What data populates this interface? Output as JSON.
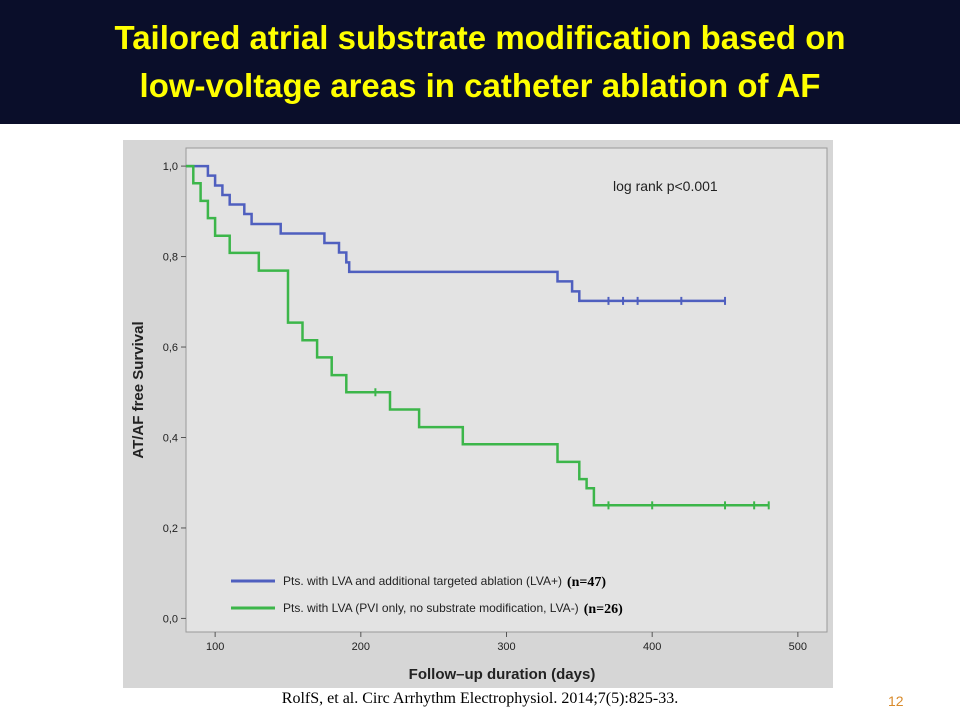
{
  "slide": {
    "title_lines": [
      "Tailored atrial substrate modification based on",
      "low-voltage areas in catheter ablation of AF"
    ],
    "citation": "RolfS, et al. Circ Arrhythm Electrophysiol. 2014;7(5):825-33.",
    "page_number": "12"
  },
  "chart_data": {
    "type": "line",
    "subtype": "kaplan-meier step",
    "xlabel": "Follow–up duration (days)",
    "ylabel": "AT/AF free Survival",
    "xlim": [
      80,
      520
    ],
    "ylim": [
      -0.03,
      1.04
    ],
    "x_ticks": [
      100,
      200,
      300,
      400,
      500
    ],
    "y_ticks": [
      0.0,
      0.2,
      0.4,
      0.6,
      0.8,
      1.0
    ],
    "y_tick_labels": [
      "0,0",
      "0,2",
      "0,4",
      "0,6",
      "0,8",
      "1,0"
    ],
    "annotation": "log rank p<0.001",
    "legend_placement": "bottom-left",
    "grid": false,
    "series": [
      {
        "name": "Pts. with LVA and additional targeted ablation (LVA+)",
        "n_label": "(n=47)",
        "color": "#4f5fbf",
        "steps": [
          [
            80,
            1.0
          ],
          [
            90,
            1.0
          ],
          [
            95,
            0.979
          ],
          [
            100,
            0.957
          ],
          [
            105,
            0.936
          ],
          [
            110,
            0.915
          ],
          [
            120,
            0.894
          ],
          [
            125,
            0.872
          ],
          [
            145,
            0.851
          ],
          [
            175,
            0.83
          ],
          [
            185,
            0.809
          ],
          [
            190,
            0.787
          ],
          [
            192,
            0.766
          ],
          [
            335,
            0.745
          ],
          [
            345,
            0.723
          ],
          [
            350,
            0.702
          ],
          [
            450,
            0.702
          ]
        ],
        "censored": [
          [
            370,
            0.702
          ],
          [
            380,
            0.702
          ],
          [
            390,
            0.702
          ],
          [
            420,
            0.702
          ],
          [
            450,
            0.702
          ]
        ]
      },
      {
        "name": "Pts. with LVA (PVI only, no substrate modification, LVA-)",
        "n_label": "(n=26)",
        "color": "#3cb64a",
        "steps": [
          [
            80,
            1.0
          ],
          [
            85,
            0.962
          ],
          [
            90,
            0.923
          ],
          [
            95,
            0.885
          ],
          [
            100,
            0.846
          ],
          [
            110,
            0.808
          ],
          [
            130,
            0.769
          ],
          [
            150,
            0.654
          ],
          [
            160,
            0.615
          ],
          [
            170,
            0.577
          ],
          [
            180,
            0.538
          ],
          [
            190,
            0.5
          ],
          [
            220,
            0.462
          ],
          [
            240,
            0.423
          ],
          [
            270,
            0.385
          ],
          [
            335,
            0.346
          ],
          [
            350,
            0.308
          ],
          [
            355,
            0.288
          ],
          [
            360,
            0.25
          ],
          [
            480,
            0.25
          ]
        ],
        "censored": [
          [
            210,
            0.5
          ],
          [
            370,
            0.25
          ],
          [
            400,
            0.25
          ],
          [
            450,
            0.25
          ],
          [
            470,
            0.25
          ],
          [
            480,
            0.25
          ]
        ]
      }
    ]
  }
}
